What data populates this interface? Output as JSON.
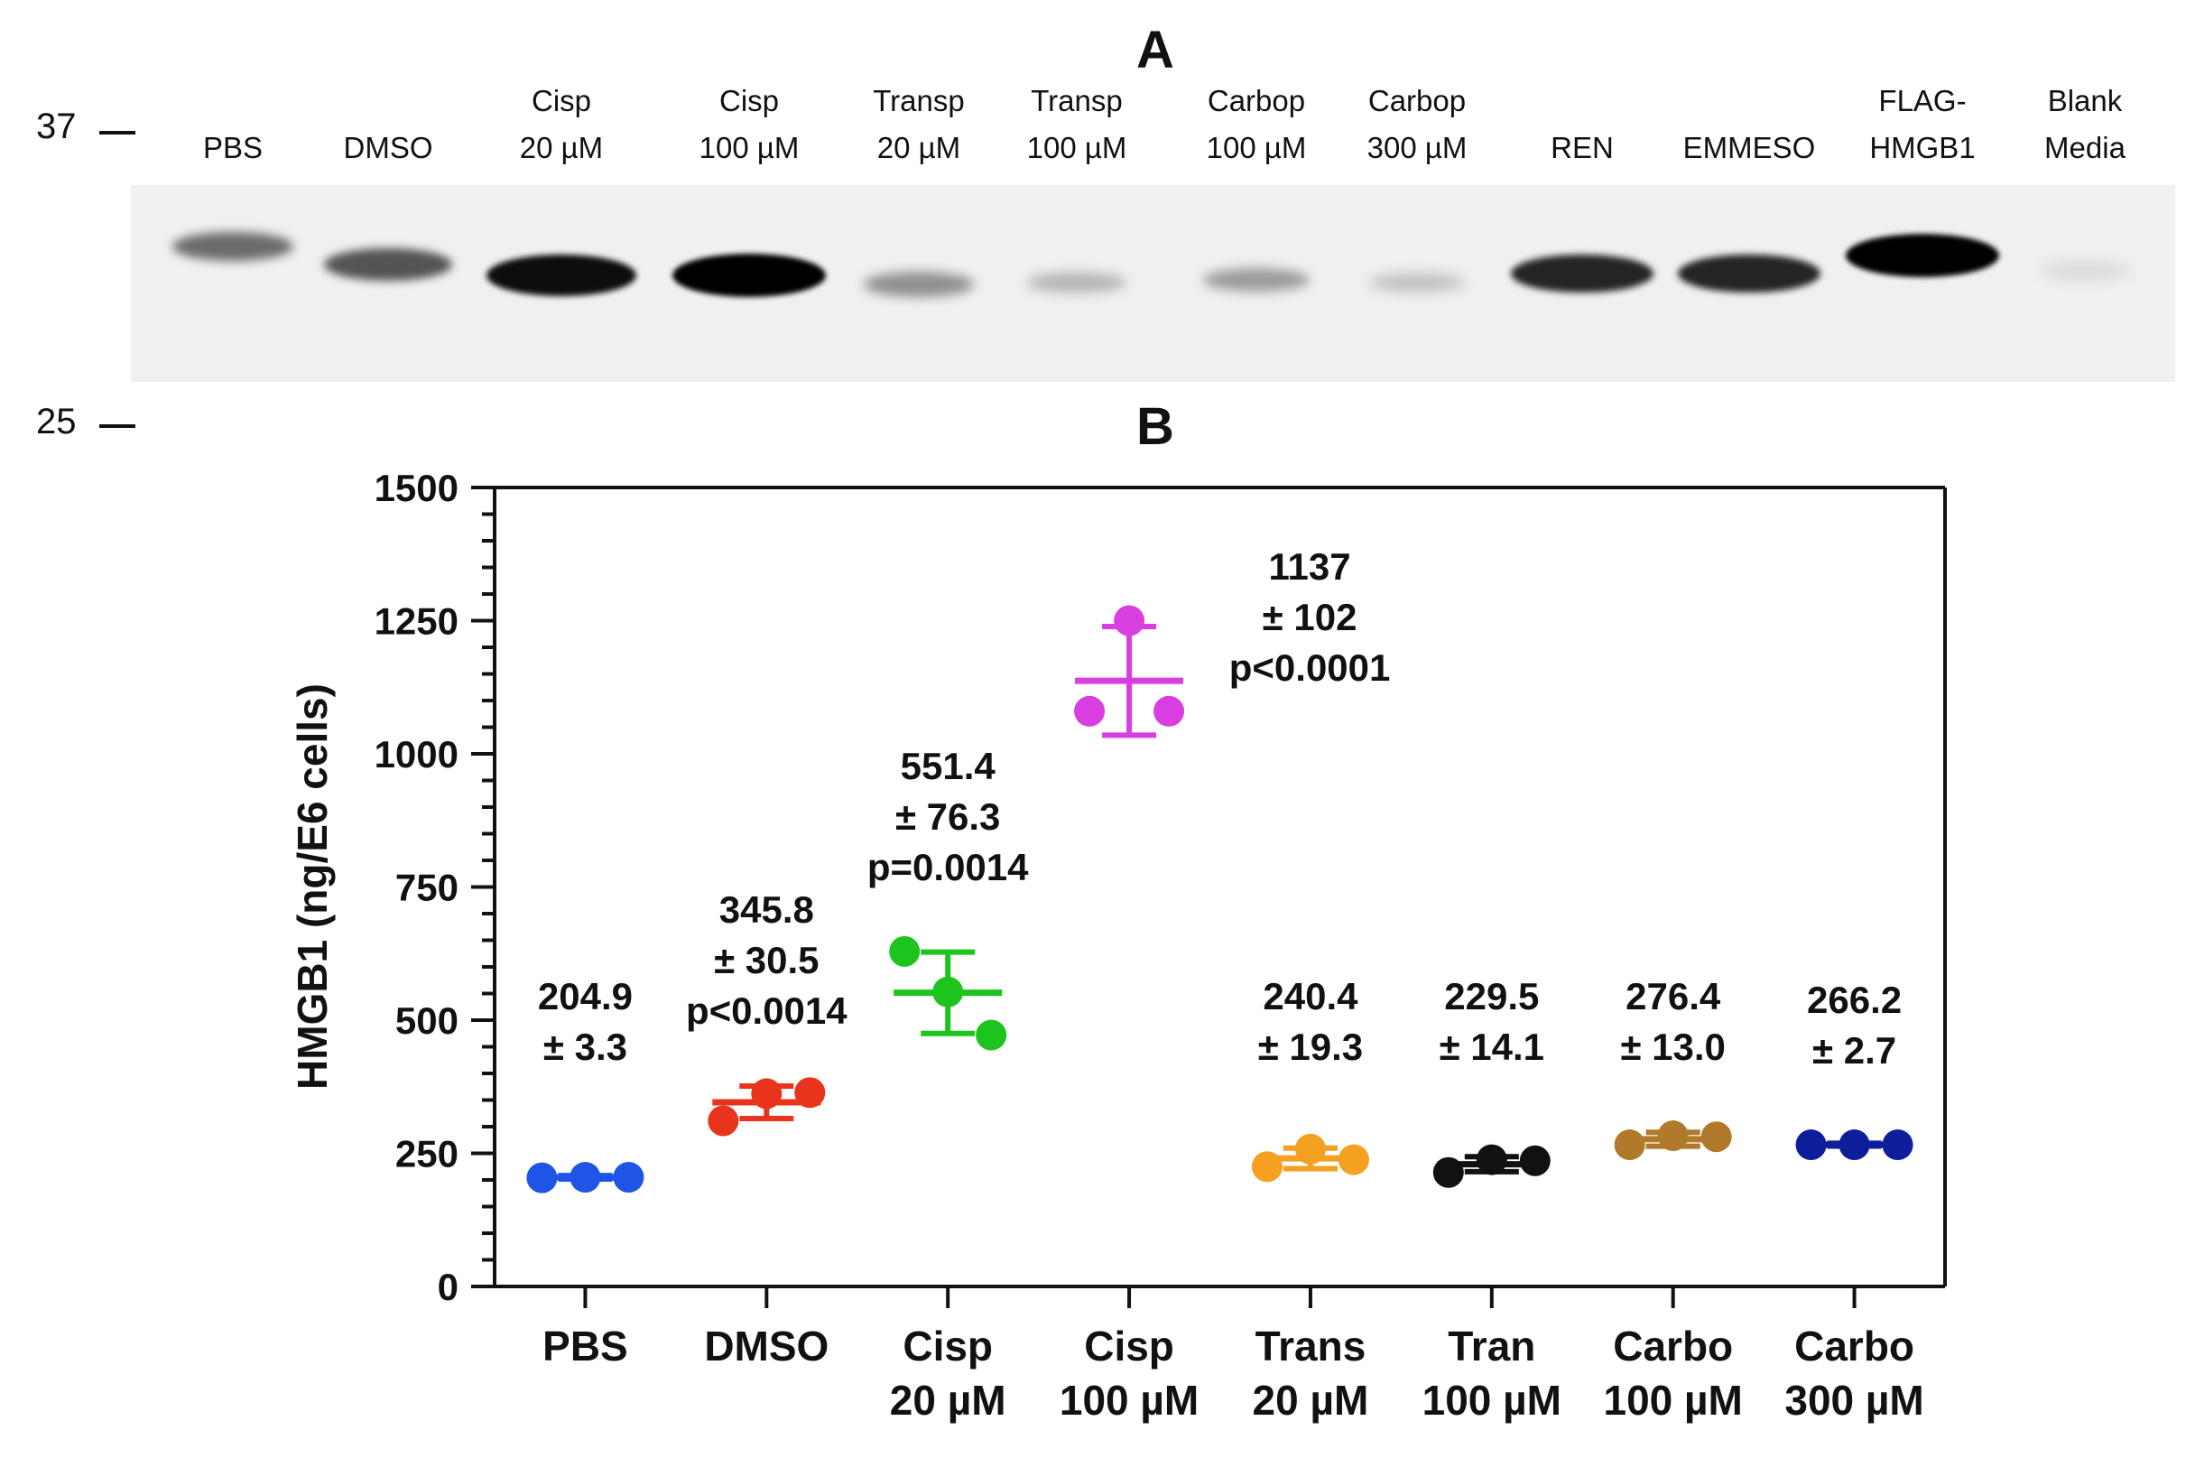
{
  "panel_a": {
    "letter": "A",
    "markers": [
      "37",
      "25"
    ],
    "lanes": [
      {
        "line1": "",
        "line2": "PBS",
        "band": 0.55
      },
      {
        "line1": "",
        "line2": "DMSO",
        "band": 0.65
      },
      {
        "line1": "Cisp",
        "line2": "20 µM",
        "band": 0.95
      },
      {
        "line1": "Cisp",
        "line2": "100 µM",
        "band": 1.0
      },
      {
        "line1": "Transp",
        "line2": "20 µM",
        "band": 0.4
      },
      {
        "line1": "Transp",
        "line2": "100 µM",
        "band": 0.25
      },
      {
        "line1": "Carbop",
        "line2": "100 µM",
        "band": 0.35
      },
      {
        "line1": "Carbop",
        "line2": "300 µM",
        "band": 0.2
      },
      {
        "line1": "",
        "line2": "REN",
        "band": 0.85
      },
      {
        "line1": "",
        "line2": "EMMESO",
        "band": 0.85
      },
      {
        "line1": "FLAG-",
        "line2": "HMGB1",
        "band": 1.0
      },
      {
        "line1": "Blank",
        "line2": "Media",
        "band": 0.1
      }
    ]
  },
  "chart_data": {
    "type": "scatter",
    "panel_letter": "B",
    "ylabel": "HMGB1 (ng/E6 cells)",
    "ylim": [
      0,
      1500
    ],
    "yticks": [
      0,
      250,
      500,
      750,
      1000,
      1250,
      1500
    ],
    "categories": [
      {
        "line1": "PBS",
        "line2": ""
      },
      {
        "line1": "DMSO",
        "line2": ""
      },
      {
        "line1": "Cisp",
        "line2": "20 µM"
      },
      {
        "line1": "Cisp",
        "line2": "100 µM"
      },
      {
        "line1": "Trans",
        "line2": "20 µM"
      },
      {
        "line1": "Tran",
        "line2": "100 µM"
      },
      {
        "line1": "Carbo",
        "line2": "100 µM"
      },
      {
        "line1": "Carbo",
        "line2": "300 µM"
      }
    ],
    "series": [
      {
        "color": "#1f55e6",
        "points": [
          204,
          205,
          205
        ],
        "mean": 204.9,
        "sd": 3.3,
        "annotation": [
          "204.9",
          "± 3.3"
        ]
      },
      {
        "color": "#e8341c",
        "points": [
          311,
          362,
          364
        ],
        "mean": 345.8,
        "sd": 30.5,
        "annotation": [
          "345.8",
          "± 30.5",
          "p<0.0014"
        ]
      },
      {
        "color": "#1dc41d",
        "points": [
          629,
          553,
          472
        ],
        "mean": 551.4,
        "sd": 76.3,
        "annotation": [
          "551.4",
          "± 76.3",
          "p=0.0014"
        ]
      },
      {
        "color": "#d93fe0",
        "points": [
          1250,
          1080,
          1080
        ],
        "mean": 1137,
        "sd": 102,
        "annotation": [
          "1137",
          "± 102",
          "p<0.0001"
        ]
      },
      {
        "color": "#f4a020",
        "points": [
          225,
          258,
          238
        ],
        "mean": 240.4,
        "sd": 19.3,
        "annotation": [
          "240.4",
          "± 19.3"
        ]
      },
      {
        "color": "#111111",
        "points": [
          214,
          238,
          236
        ],
        "mean": 229.5,
        "sd": 14.1,
        "annotation": [
          "229.5",
          "± 14.1"
        ]
      },
      {
        "color": "#b07a2a",
        "points": [
          266,
          283,
          281
        ],
        "mean": 276.4,
        "sd": 13.0,
        "annotation": [
          "276.4",
          "± 13.0"
        ]
      },
      {
        "color": "#0d1e9a",
        "points": [
          266,
          266,
          266
        ],
        "mean": 266.2,
        "sd": 2.7,
        "annotation": [
          "266.2",
          "± 2.7"
        ]
      }
    ]
  }
}
